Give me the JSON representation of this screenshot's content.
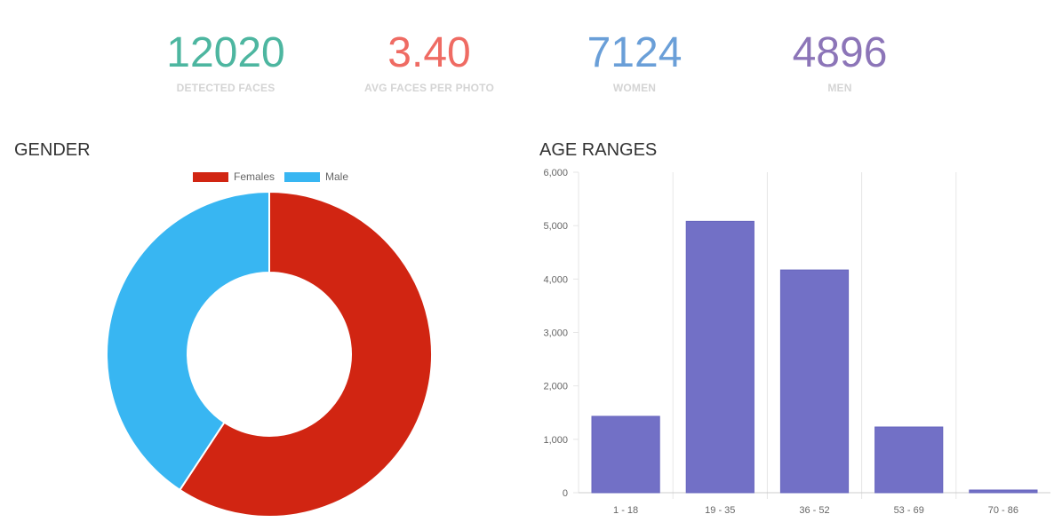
{
  "stats": [
    {
      "value": "12020",
      "label": "DETECTED FACES",
      "color": "#4db6a0"
    },
    {
      "value": "3.40",
      "label": "AVG FACES PER PHOTO",
      "color": "#ef6b63"
    },
    {
      "value": "7124",
      "label": "WOMEN",
      "color": "#6a9fd8"
    },
    {
      "value": "4896",
      "label": "MEN",
      "color": "#8c75b8"
    }
  ],
  "gender": {
    "title": "GENDER"
  },
  "age": {
    "title": "AGE RANGES"
  },
  "chart_data": [
    {
      "type": "pie",
      "donut": true,
      "title": "GENDER",
      "legend_placement": "top",
      "categories": [
        "Females",
        "Male"
      ],
      "values": [
        7124,
        4896
      ],
      "colors": [
        "#d12512",
        "#38b6f2"
      ]
    },
    {
      "type": "bar",
      "title": "AGE RANGES",
      "categories": [
        "1 - 18",
        "19 - 35",
        "36 - 52",
        "53 - 69",
        "70 - 86"
      ],
      "values": [
        1430,
        5080,
        4170,
        1230,
        50
      ],
      "ylim": [
        0,
        6000
      ],
      "yticks": [
        "0",
        "1,000",
        "2,000",
        "3,000",
        "4,000",
        "5,000",
        "6,000"
      ],
      "grid": "vertical",
      "color": "#7270c6"
    }
  ]
}
